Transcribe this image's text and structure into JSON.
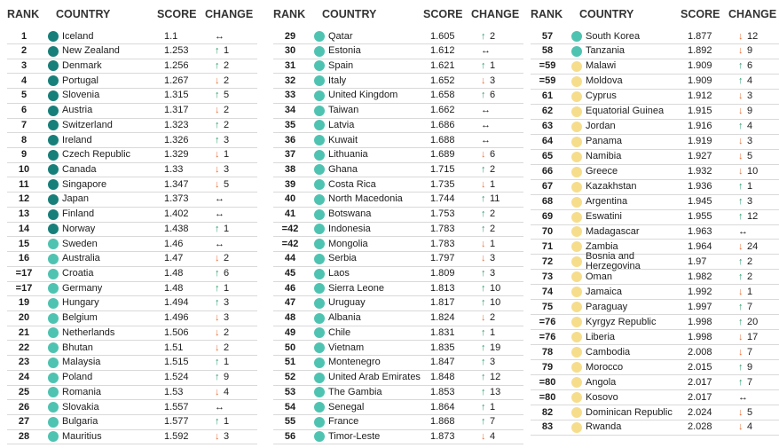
{
  "headers": [
    "RANK",
    "COUNTRY",
    "SCORE",
    "CHANGE"
  ],
  "arrow_colors": {
    "↑": "#2a9d6f",
    "↓": "#e8703a",
    "↔": "#1d1d1d"
  },
  "columns": [
    [
      [
        "1",
        "#177f79",
        "Iceland",
        1.1,
        "↔"
      ],
      [
        "2",
        "#177f79",
        "New Zealand",
        1.253,
        "↑",
        1
      ],
      [
        "3",
        "#177f79",
        "Denmark",
        1.256,
        "↑",
        2
      ],
      [
        "4",
        "#177f79",
        "Portugal",
        1.267,
        "↓",
        2
      ],
      [
        "5",
        "#177f79",
        "Slovenia",
        1.315,
        "↑",
        5
      ],
      [
        "6",
        "#177f79",
        "Austria",
        1.317,
        "↓",
        2
      ],
      [
        "7",
        "#177f79",
        "Switzerland",
        1.323,
        "↑",
        2
      ],
      [
        "8",
        "#177f79",
        "Ireland",
        1.326,
        "↑",
        3
      ],
      [
        "9",
        "#177f79",
        "Czech Republic",
        1.329,
        "↓",
        1
      ],
      [
        "10",
        "#177f79",
        "Canada",
        1.33,
        "↓",
        3
      ],
      [
        "11",
        "#177f79",
        "Singapore",
        1.347,
        "↓",
        5
      ],
      [
        "12",
        "#177f79",
        "Japan",
        1.373,
        "↔"
      ],
      [
        "13",
        "#177f79",
        "Finland",
        1.402,
        "↔"
      ],
      [
        "14",
        "#177f79",
        "Norway",
        1.438,
        "↑",
        1
      ],
      [
        "15",
        "#4fc3b1",
        "Sweden",
        1.46,
        "↔"
      ],
      [
        "16",
        "#4fc3b1",
        "Australia",
        1.47,
        "↓",
        2
      ],
      [
        "=17",
        "#4fc3b1",
        "Croatia",
        1.48,
        "↑",
        6
      ],
      [
        "=17",
        "#4fc3b1",
        "Germany",
        1.48,
        "↑",
        1
      ],
      [
        "19",
        "#4fc3b1",
        "Hungary",
        1.494,
        "↑",
        3
      ],
      [
        "20",
        "#4fc3b1",
        "Belgium",
        1.496,
        "↓",
        3
      ],
      [
        "21",
        "#4fc3b1",
        "Netherlands",
        1.506,
        "↓",
        2
      ],
      [
        "22",
        "#4fc3b1",
        "Bhutan",
        1.51,
        "↓",
        2
      ],
      [
        "23",
        "#4fc3b1",
        "Malaysia",
        1.515,
        "↑",
        1
      ],
      [
        "24",
        "#4fc3b1",
        "Poland",
        1.524,
        "↑",
        9
      ],
      [
        "25",
        "#4fc3b1",
        "Romania",
        1.53,
        "↓",
        4
      ],
      [
        "26",
        "#4fc3b1",
        "Slovakia",
        1.557,
        "↔"
      ],
      [
        "27",
        "#4fc3b1",
        "Bulgaria",
        1.577,
        "↑",
        1
      ],
      [
        "28",
        "#4fc3b1",
        "Mauritius",
        1.592,
        "↓",
        3
      ]
    ],
    [
      [
        "29",
        "#4fc3b1",
        "Qatar",
        1.605,
        "↑",
        2
      ],
      [
        "30",
        "#4fc3b1",
        "Estonia",
        1.612,
        "↔"
      ],
      [
        "31",
        "#4fc3b1",
        "Spain",
        1.621,
        "↑",
        1
      ],
      [
        "32",
        "#4fc3b1",
        "Italy",
        1.652,
        "↓",
        3
      ],
      [
        "33",
        "#4fc3b1",
        "United Kingdom",
        1.658,
        "↑",
        6
      ],
      [
        "34",
        "#4fc3b1",
        "Taiwan",
        1.662,
        "↔"
      ],
      [
        "35",
        "#4fc3b1",
        "Latvia",
        1.686,
        "↔"
      ],
      [
        "36",
        "#4fc3b1",
        "Kuwait",
        1.688,
        "↔"
      ],
      [
        "37",
        "#4fc3b1",
        "Lithuania",
        1.689,
        "↓",
        6
      ],
      [
        "38",
        "#4fc3b1",
        "Ghana",
        1.715,
        "↑",
        2
      ],
      [
        "39",
        "#4fc3b1",
        "Costa Rica",
        1.735,
        "↓",
        1
      ],
      [
        "40",
        "#4fc3b1",
        "North Macedonia",
        1.744,
        "↑",
        11
      ],
      [
        "41",
        "#4fc3b1",
        "Botswana",
        1.753,
        "↑",
        2
      ],
      [
        "=42",
        "#4fc3b1",
        "Indonesia",
        1.783,
        "↑",
        2
      ],
      [
        "=42",
        "#4fc3b1",
        "Mongolia",
        1.783,
        "↓",
        1
      ],
      [
        "44",
        "#4fc3b1",
        "Serbia",
        1.797,
        "↓",
        3
      ],
      [
        "45",
        "#4fc3b1",
        "Laos",
        1.809,
        "↑",
        3
      ],
      [
        "46",
        "#4fc3b1",
        "Sierra Leone",
        1.813,
        "↑",
        10
      ],
      [
        "47",
        "#4fc3b1",
        "Uruguay",
        1.817,
        "↑",
        10
      ],
      [
        "48",
        "#4fc3b1",
        "Albania",
        1.824,
        "↓",
        2
      ],
      [
        "49",
        "#4fc3b1",
        "Chile",
        1.831,
        "↑",
        1
      ],
      [
        "50",
        "#4fc3b1",
        "Vietnam",
        1.835,
        "↑",
        19
      ],
      [
        "51",
        "#4fc3b1",
        "Montenegro",
        1.847,
        "↑",
        3
      ],
      [
        "52",
        "#4fc3b1",
        "United Arab Emirates",
        1.848,
        "↑",
        12
      ],
      [
        "53",
        "#4fc3b1",
        "The Gambia",
        1.853,
        "↑",
        13
      ],
      [
        "54",
        "#4fc3b1",
        "Senegal",
        1.864,
        "↑",
        1
      ],
      [
        "55",
        "#4fc3b1",
        "France",
        1.868,
        "↑",
        7
      ],
      [
        "56",
        "#4fc3b1",
        "Timor-Leste",
        1.873,
        "↓",
        4
      ]
    ],
    [
      [
        "57",
        "#4fc3b1",
        "South Korea",
        1.877,
        "↓",
        12
      ],
      [
        "58",
        "#4fc3b1",
        "Tanzania",
        1.892,
        "↓",
        9
      ],
      [
        "=59",
        "#f6dd8c",
        "Malawi",
        1.909,
        "↑",
        6
      ],
      [
        "=59",
        "#f6dd8c",
        "Moldova",
        1.909,
        "↑",
        4
      ],
      [
        "61",
        "#f6dd8c",
        "Cyprus",
        1.912,
        "↓",
        3
      ],
      [
        "62",
        "#f6dd8c",
        "Equatorial Guinea",
        1.915,
        "↓",
        9
      ],
      [
        "63",
        "#f6dd8c",
        "Jordan",
        1.916,
        "↑",
        4
      ],
      [
        "64",
        "#f6dd8c",
        "Panama",
        1.919,
        "↓",
        3
      ],
      [
        "65",
        "#f6dd8c",
        "Namibia",
        1.927,
        "↓",
        5
      ],
      [
        "66",
        "#f6dd8c",
        "Greece",
        1.932,
        "↓",
        10
      ],
      [
        "67",
        "#f6dd8c",
        "Kazakhstan",
        1.936,
        "↑",
        1
      ],
      [
        "68",
        "#f6dd8c",
        "Argentina",
        1.945,
        "↑",
        3
      ],
      [
        "69",
        "#f6dd8c",
        "Eswatini",
        1.955,
        "↑",
        12
      ],
      [
        "70",
        "#f6dd8c",
        "Madagascar",
        1.963,
        "↔"
      ],
      [
        "71",
        "#f6dd8c",
        "Zambia",
        1.964,
        "↓",
        24
      ],
      [
        "72",
        "#f6dd8c",
        "Bosnia and Herzegovina",
        1.97,
        "↑",
        2
      ],
      [
        "73",
        "#f6dd8c",
        "Oman",
        1.982,
        "↑",
        2
      ],
      [
        "74",
        "#f6dd8c",
        "Jamaica",
        1.992,
        "↓",
        1
      ],
      [
        "75",
        "#f6dd8c",
        "Paraguay",
        1.997,
        "↑",
        7
      ],
      [
        "=76",
        "#f6dd8c",
        "Kyrgyz Republic",
        1.998,
        "↑",
        20
      ],
      [
        "=76",
        "#f6dd8c",
        "Liberia",
        1.998,
        "↓",
        17
      ],
      [
        "78",
        "#f6dd8c",
        "Cambodia",
        2.008,
        "↓",
        7
      ],
      [
        "79",
        "#f6dd8c",
        "Morocco",
        2.015,
        "↑",
        9
      ],
      [
        "=80",
        "#f6dd8c",
        "Angola",
        2.017,
        "↑",
        7
      ],
      [
        "=80",
        "#f6dd8c",
        "Kosovo",
        2.017,
        "↔"
      ],
      [
        "82",
        "#f6dd8c",
        "Dominican Republic",
        2.024,
        "↓",
        5
      ],
      [
        "83",
        "#f6dd8c",
        "Rwanda",
        2.028,
        "↓",
        4
      ]
    ]
  ]
}
